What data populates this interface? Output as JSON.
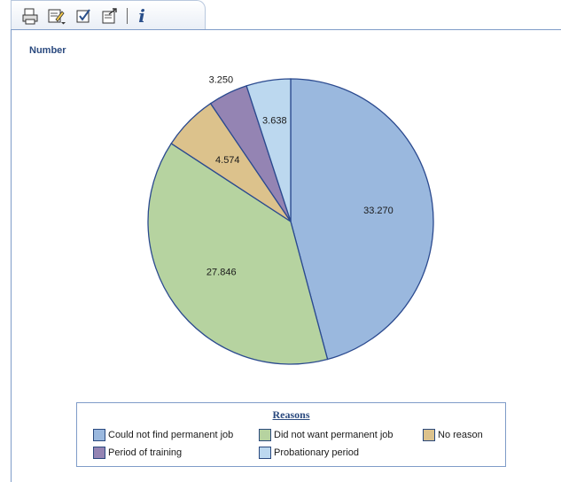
{
  "toolbar": {
    "buttons": [
      "print-icon",
      "edit-dropdown-icon",
      "checklist-icon",
      "export-icon"
    ],
    "info_label": "i"
  },
  "chart_data": {
    "type": "pie",
    "title": "Number",
    "legend_title": "Reasons",
    "legend_position": "bottom",
    "slices": [
      {
        "label": "Could not find permanent job",
        "value": 33270,
        "display": "33.270",
        "color": "#9ab8de"
      },
      {
        "label": "Did not want permanent job",
        "value": 27846,
        "display": "27.846",
        "color": "#b6d3a0"
      },
      {
        "label": "No reason",
        "value": 4574,
        "display": "4.574",
        "color": "#dcc28c"
      },
      {
        "label": "Period of training",
        "value": 3250,
        "display": "3.250",
        "color": "#9484b3"
      },
      {
        "label": "Probationary period",
        "value": 3638,
        "display": "3.638",
        "color": "#bcd8ef"
      }
    ]
  }
}
